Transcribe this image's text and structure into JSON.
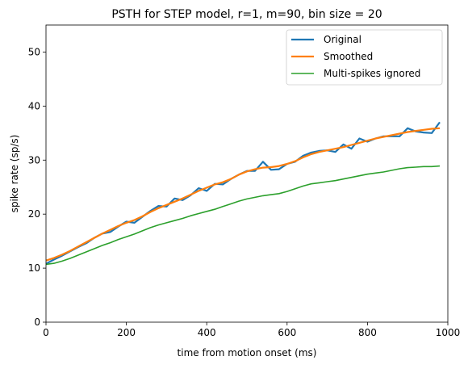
{
  "chart_data": {
    "type": "line",
    "title": "PSTH for STEP model, r=1, m=90, bin size = 20",
    "xlabel": "time from motion onset (ms)",
    "ylabel": "spike rate (sp/s)",
    "xlim": [
      0,
      1000
    ],
    "ylim": [
      0,
      55
    ],
    "xticks": [
      0,
      200,
      400,
      600,
      800,
      1000
    ],
    "yticks": [
      0,
      10,
      20,
      30,
      40,
      50
    ],
    "grid": false,
    "legend_position": "top-right",
    "x": [
      0,
      20,
      40,
      60,
      80,
      100,
      120,
      140,
      160,
      180,
      200,
      220,
      240,
      260,
      280,
      300,
      320,
      340,
      360,
      380,
      400,
      420,
      440,
      460,
      480,
      500,
      520,
      540,
      560,
      580,
      600,
      620,
      640,
      660,
      680,
      700,
      720,
      740,
      760,
      780,
      800,
      820,
      840,
      860,
      880,
      900,
      920,
      940,
      960,
      980
    ],
    "series": [
      {
        "name": "Original",
        "color": "#1f77b4",
        "values": [
          10.8,
          11.6,
          12.3,
          13.1,
          13.9,
          14.6,
          15.6,
          16.4,
          16.7,
          17.7,
          18.6,
          18.4,
          19.5,
          20.6,
          21.5,
          21.4,
          22.9,
          22.6,
          23.5,
          24.8,
          24.3,
          25.6,
          25.5,
          26.5,
          27.3,
          28.0,
          28.0,
          29.7,
          28.2,
          28.3,
          29.3,
          29.7,
          30.8,
          31.4,
          31.7,
          31.8,
          31.5,
          32.9,
          32.1,
          34.0,
          33.4,
          34.0,
          34.4,
          34.4,
          34.4,
          35.9,
          35.3,
          35.1,
          35.0,
          37.0
        ]
      },
      {
        "name": "Smoothed",
        "color": "#ff7f0e",
        "values": [
          11.4,
          11.9,
          12.5,
          13.2,
          14.0,
          14.8,
          15.6,
          16.4,
          17.1,
          17.8,
          18.4,
          18.9,
          19.6,
          20.4,
          21.1,
          21.7,
          22.3,
          22.9,
          23.6,
          24.3,
          24.9,
          25.5,
          25.9,
          26.5,
          27.3,
          27.9,
          28.3,
          28.6,
          28.7,
          28.9,
          29.3,
          29.8,
          30.5,
          31.1,
          31.5,
          31.8,
          32.1,
          32.4,
          32.8,
          33.2,
          33.6,
          34.0,
          34.3,
          34.6,
          34.9,
          35.2,
          35.4,
          35.6,
          35.8,
          35.9
        ]
      },
      {
        "name": "Multi-spikes ignored",
        "color": "#2ca02c",
        "values": [
          10.7,
          10.9,
          11.3,
          11.8,
          12.4,
          13.0,
          13.6,
          14.2,
          14.7,
          15.3,
          15.8,
          16.3,
          16.9,
          17.5,
          18.0,
          18.4,
          18.8,
          19.2,
          19.7,
          20.1,
          20.5,
          20.9,
          21.4,
          21.9,
          22.4,
          22.8,
          23.1,
          23.4,
          23.6,
          23.8,
          24.2,
          24.7,
          25.2,
          25.6,
          25.8,
          26.0,
          26.2,
          26.5,
          26.8,
          27.1,
          27.4,
          27.6,
          27.8,
          28.1,
          28.4,
          28.6,
          28.7,
          28.8,
          28.8,
          28.9
        ]
      }
    ]
  }
}
